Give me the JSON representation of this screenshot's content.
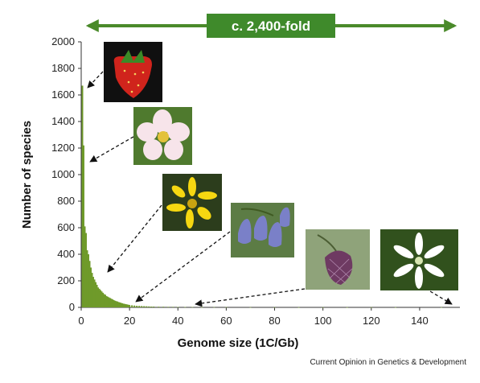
{
  "chart_data": {
    "type": "bar",
    "annotation": "c. 2,400-fold",
    "xlabel": "Genome size (1C/Gb)",
    "ylabel": "Number of species",
    "xlim": [
      0,
      152
    ],
    "ylim": [
      0,
      2000
    ],
    "xticks": [
      0,
      20,
      40,
      60,
      80,
      100,
      120,
      140
    ],
    "yticks": [
      0,
      200,
      400,
      600,
      800,
      1000,
      1200,
      1400,
      1600,
      1800,
      2000
    ],
    "bin_width_gb": 0.65,
    "x": [
      0.5,
      1.0,
      1.5,
      2.0,
      2.5,
      3.0,
      3.5,
      4.0,
      4.5,
      5.0,
      5.5,
      6.0,
      6.5,
      7.0,
      7.5,
      8.0,
      8.5,
      9.0,
      9.5,
      10.0,
      10.5,
      11.0,
      11.5,
      12.0,
      12.5,
      13.0,
      13.5,
      14.0,
      14.5,
      15.0,
      15.5,
      16.0,
      16.5,
      17.0,
      17.5,
      18.0,
      18.5,
      19.0,
      19.5,
      20.0,
      21.0,
      22.0,
      23.0,
      24.0,
      25.0,
      26.0,
      27.0,
      28.0,
      29.0,
      30.0,
      32.0,
      34.0,
      36.0,
      38.0,
      40.0,
      43.0,
      46.0,
      50.0,
      55.0,
      60.0,
      70.0,
      80.0,
      90.0,
      100.0,
      110.0,
      120.0,
      130.0,
      149.0
    ],
    "values": [
      1670,
      1220,
      610,
      560,
      430,
      400,
      350,
      300,
      260,
      230,
      210,
      190,
      170,
      150,
      140,
      130,
      120,
      110,
      100,
      95,
      85,
      80,
      75,
      70,
      65,
      60,
      55,
      50,
      47,
      44,
      40,
      37,
      34,
      31,
      28,
      26,
      24,
      22,
      20,
      18,
      16,
      14,
      12,
      11,
      10,
      9,
      8,
      7,
      6,
      6,
      5,
      5,
      4,
      4,
      3,
      3,
      3,
      2,
      2,
      2,
      1,
      1,
      1,
      1,
      1,
      1,
      1,
      1
    ],
    "bar_color": "#6f9a2a",
    "banner_color": "#3f8a2b",
    "source": "Current Opinion in Genetics & Development"
  }
}
